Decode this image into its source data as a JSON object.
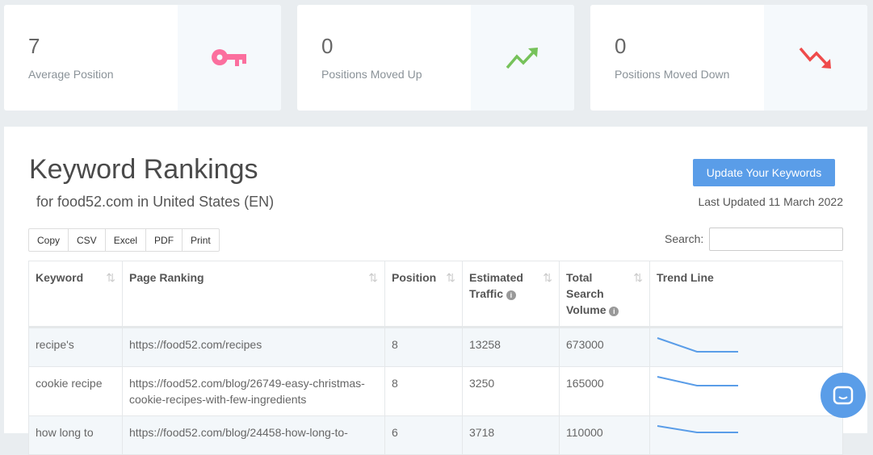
{
  "cards": [
    {
      "value": "7",
      "label": "Average Position",
      "icon": "key-icon",
      "color": "#fb6f9e"
    },
    {
      "value": "0",
      "label": "Positions Moved Up",
      "icon": "trend-up-icon",
      "color": "#76c25a"
    },
    {
      "value": "0",
      "label": "Positions Moved Down",
      "icon": "trend-down-icon",
      "color": "#ef4b4b"
    }
  ],
  "header": {
    "title": "Keyword Rankings",
    "subtitle": "for food52.com in United States (EN)",
    "update_button": "Update Your Keywords",
    "last_updated": "Last Updated 11 March 2022"
  },
  "export_buttons": [
    "Copy",
    "CSV",
    "Excel",
    "PDF",
    "Print"
  ],
  "search": {
    "label": "Search:",
    "value": ""
  },
  "table": {
    "columns": [
      "Keyword",
      "Page Ranking",
      "Position",
      "Estimated Traffic",
      "Total Search Volume",
      "Trend Line"
    ],
    "rows": [
      {
        "keyword": "recipe's",
        "page": "https://food52.com/recipes",
        "position": "8",
        "traffic": "13258",
        "volume": "673000"
      },
      {
        "keyword": "cookie recipe",
        "page": "https://food52.com/blog/26749-easy-christmas-cookie-recipes-with-few-ingredients",
        "position": "8",
        "traffic": "3250",
        "volume": "165000"
      },
      {
        "keyword": "how long to",
        "page": "https://food52.com/blog/24458-how-long-to-",
        "position": "6",
        "traffic": "3718",
        "volume": "110000"
      }
    ]
  },
  "accent": "#5a9de8"
}
